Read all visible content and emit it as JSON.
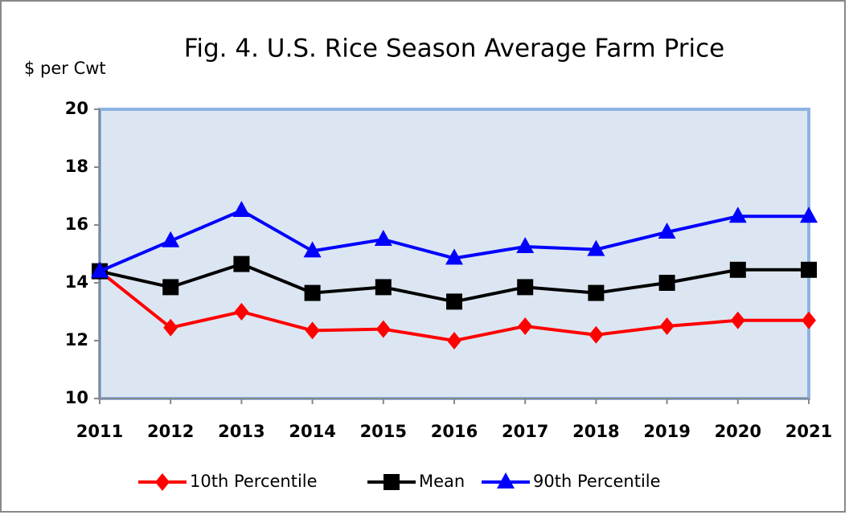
{
  "chart_data": {
    "type": "line",
    "title": "Fig. 4.  U.S. Rice Season Average Farm Price",
    "y_axis_label": "$ per Cwt",
    "categories": [
      "2011",
      "2012",
      "2013",
      "2014",
      "2015",
      "2016",
      "2017",
      "2018",
      "2019",
      "2020",
      "2021"
    ],
    "series": [
      {
        "name": "10th Percentile",
        "color": "#ff0000",
        "marker": "diamond",
        "values": [
          14.4,
          12.45,
          13.0,
          12.35,
          12.4,
          12.0,
          12.5,
          12.2,
          12.5,
          12.7,
          12.7
        ]
      },
      {
        "name": "Mean",
        "color": "#000000",
        "marker": "square",
        "values": [
          14.4,
          13.85,
          14.65,
          13.65,
          13.85,
          13.35,
          13.85,
          13.65,
          14.0,
          14.45,
          14.45
        ]
      },
      {
        "name": "90th Percentile",
        "color": "#0000ff",
        "marker": "triangle",
        "values": [
          14.4,
          15.45,
          16.5,
          15.1,
          15.5,
          14.85,
          15.25,
          15.15,
          15.75,
          16.3,
          16.3
        ]
      }
    ],
    "ylim": [
      10,
      20
    ],
    "yticks": [
      10,
      12,
      14,
      16,
      18,
      20
    ],
    "grid": false,
    "legend": "bottom"
  }
}
